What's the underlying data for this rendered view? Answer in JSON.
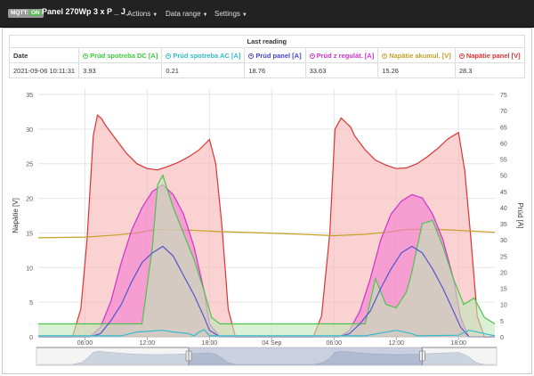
{
  "navbar": {
    "mqtt_label": "MQTT:",
    "mqtt_state": "ON",
    "brand": "Panel 270Wp 3 x P _ J_",
    "menus": [
      "Actions",
      "Data range",
      "Settings"
    ]
  },
  "last_reading": {
    "title": "Last reading",
    "columns": [
      "Date",
      "Prúd spotreba DC [A]",
      "Prúd spotreba AC [A]",
      "Prúd panel [A]",
      "Prúd z regulát. [A]",
      "Napätie akumul. [V]",
      "Napätie panel [V]"
    ],
    "column_colors": [
      "#333333",
      "#3ccc3c",
      "#33bbcc",
      "#4444cc",
      "#cc33cc",
      "#c8a026",
      "#dd3333"
    ],
    "row": [
      "2021-09-06 10:11:31",
      "3.93",
      "0.21",
      "18.76",
      "33.63",
      "15.26",
      "28.3"
    ]
  },
  "chart_data": {
    "type": "area",
    "ylabel": "Napätie [V]",
    "y2label": "Prúd [A]",
    "ylim": [
      0,
      35
    ],
    "y2lim": [
      0,
      75
    ],
    "y_ticks": [
      "0",
      "5",
      "10",
      "15",
      "20",
      "25",
      "30",
      "35"
    ],
    "y2_ticks": [
      "0",
      "5",
      "10",
      "15",
      "20",
      "25",
      "30",
      "35",
      "40",
      "45",
      "50",
      "55",
      "60",
      "65",
      "70",
      "75"
    ],
    "x_ticks": [
      "06:00",
      "12:00",
      "18:00",
      "04 Sep",
      "06:00",
      "12:00",
      "18:00"
    ],
    "x_hours": [
      6,
      12,
      18,
      24,
      30,
      36,
      42
    ],
    "xlim": [
      1.5,
      45.5
    ],
    "series": [
      {
        "name": "Napätie panel [V]",
        "axis": "left",
        "color": "#dd3333",
        "fill": "#f6b4b4",
        "x": [
          1.5,
          4.8,
          5.6,
          6.2,
          6.8,
          7.2,
          7.6,
          8,
          9,
          10,
          11,
          12,
          13,
          14,
          15,
          16,
          17,
          18,
          18.6,
          19.2,
          19.8,
          20.5,
          22,
          24,
          26,
          28,
          28.8,
          29.6,
          30.1,
          30.7,
          31.1,
          31.6,
          32,
          33,
          34,
          35,
          36,
          37,
          38,
          39,
          40,
          41,
          42,
          42.6,
          43.2,
          43.8,
          44.5,
          45.5
        ],
        "y": [
          0,
          0,
          4,
          14,
          29,
          32,
          31.5,
          30.5,
          28.5,
          26.5,
          25,
          24.3,
          24.1,
          24.6,
          25.2,
          26,
          27,
          28.5,
          25,
          16,
          4,
          0,
          0,
          0,
          0,
          0,
          3,
          15,
          30,
          31.6,
          31,
          30.3,
          29,
          27,
          25.5,
          24.8,
          24.3,
          24.4,
          25,
          26,
          27.2,
          28.6,
          29.5,
          24,
          14,
          3,
          0,
          0
        ]
      },
      {
        "name": "Napätie akumul. [V]",
        "axis": "left",
        "color": "#c8a026",
        "fill": "none",
        "x": [
          1.5,
          6,
          9,
          11,
          12,
          13,
          16,
          19,
          23,
          27,
          30,
          33,
          35,
          36,
          37,
          40,
          43,
          45.5
        ],
        "y": [
          14.3,
          14.4,
          14.7,
          15,
          15.3,
          15.5,
          15.4,
          15.2,
          15,
          14.8,
          14.6,
          14.8,
          15.1,
          15.3,
          15.5,
          15.5,
          15.3,
          15.1
        ]
      },
      {
        "name": "Prúd z regulát. [A]",
        "axis": "right",
        "color": "#cc33cc",
        "fill": "#f47ad0",
        "x": [
          1.5,
          6.5,
          7.5,
          8.5,
          9.5,
          10.5,
          11.5,
          12.5,
          13.5,
          14.5,
          15.5,
          16.5,
          17.5,
          18,
          19,
          23,
          27,
          30.5,
          31.5,
          32.5,
          33.5,
          34.5,
          35.5,
          36.5,
          37.5,
          38.5,
          39.5,
          40.5,
          41.5,
          42.2,
          43,
          45.5
        ],
        "y": [
          0,
          0,
          3,
          11,
          23,
          33,
          40,
          45,
          47,
          44,
          38,
          28,
          14,
          4,
          0,
          0,
          0,
          0,
          2,
          8,
          18,
          30,
          38,
          42,
          44,
          43,
          38,
          30,
          18,
          6,
          0,
          0
        ]
      },
      {
        "name": "Prúd spotreba DC [A]",
        "axis": "right",
        "color": "#4cc44c",
        "fill": "#bfe8b8",
        "x": [
          1.5,
          9,
          10.5,
          11.5,
          12.5,
          13,
          13.5,
          14.5,
          15.5,
          16.5,
          17.5,
          18.2,
          19,
          33,
          34,
          35,
          36,
          37,
          37.5,
          38.5,
          39.5,
          40.5,
          41.5,
          42.5,
          43.5,
          44.5,
          45.5
        ],
        "y": [
          4,
          4,
          4,
          4,
          28,
          47,
          50,
          40,
          32,
          24,
          14,
          6,
          4,
          4,
          18,
          10,
          9,
          14,
          20,
          35,
          36,
          28,
          18,
          10,
          12,
          6,
          4
        ]
      },
      {
        "name": "Prúd panel [A]",
        "axis": "right",
        "color": "#5555cc",
        "fill": "none",
        "x": [
          1.5,
          6.5,
          7.5,
          8.5,
          9.5,
          10.5,
          11.5,
          12.5,
          13.5,
          14.5,
          15.5,
          16.5,
          17.5,
          18,
          19,
          23,
          27,
          30.5,
          31.5,
          32.5,
          33.5,
          34.5,
          35.5,
          36.5,
          37.5,
          38.5,
          39.5,
          40.5,
          41.5,
          42.2,
          43,
          45.5
        ],
        "y": [
          0,
          0,
          1,
          5,
          10,
          17,
          23,
          26,
          28,
          25,
          19,
          13,
          6,
          2,
          0,
          0,
          0,
          0,
          1,
          4,
          8,
          15,
          21,
          26,
          28,
          26,
          21,
          15,
          8,
          3,
          0,
          0
        ]
      },
      {
        "name": "Prúd spotreba AC [A]",
        "axis": "right",
        "color": "#33bbcc",
        "fill": "none",
        "x": [
          1.5,
          9.5,
          11,
          13.5,
          14.5,
          16,
          16.5,
          17,
          17.5,
          18,
          19,
          22,
          24,
          26,
          30,
          33,
          36,
          37.5,
          38,
          42,
          43,
          45.5
        ],
        "y": [
          0.3,
          0.3,
          1.5,
          2,
          1.5,
          1,
          0.3,
          1.5,
          2.2,
          0.3,
          0.3,
          0.3,
          0.3,
          0.3,
          0.3,
          0.3,
          2,
          1,
          0.3,
          0.5,
          2,
          0.3
        ]
      }
    ]
  },
  "navigator": {
    "range_hours": [
      16,
      38.5
    ]
  }
}
